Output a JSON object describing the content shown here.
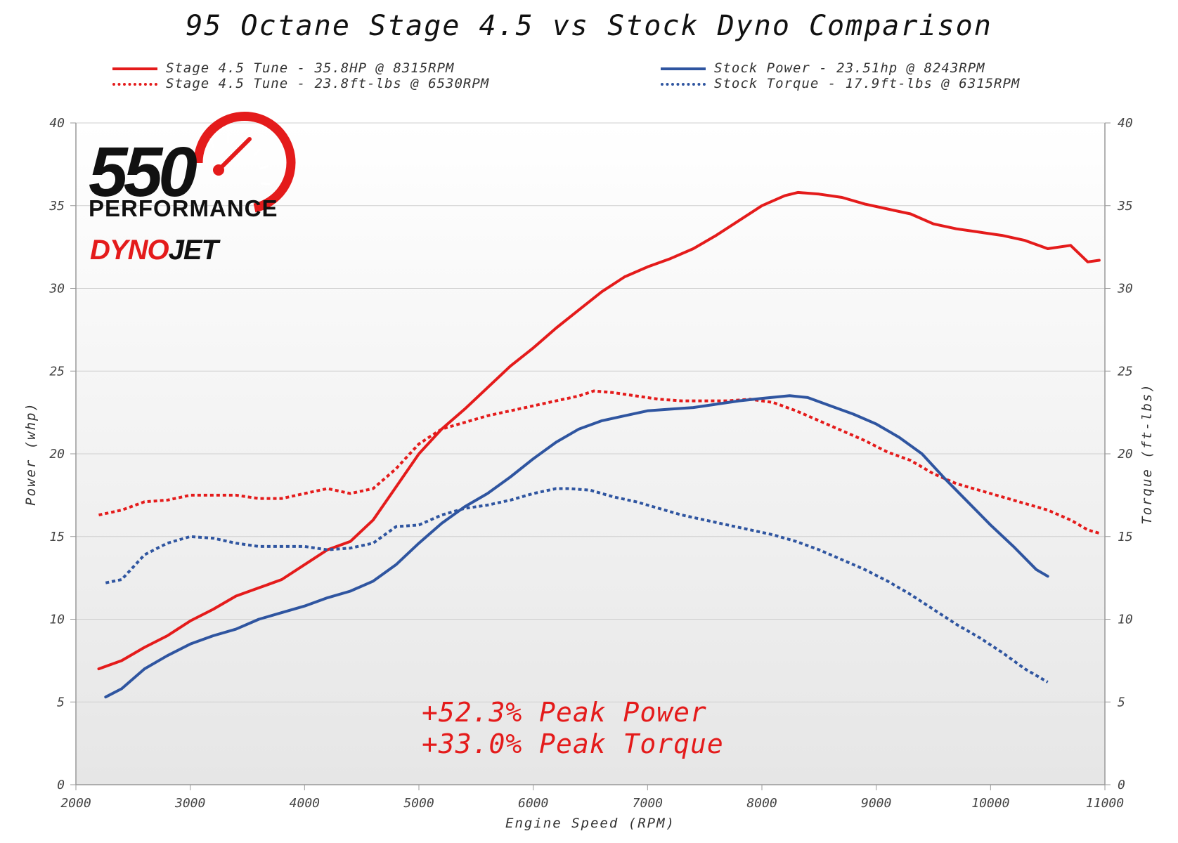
{
  "title": "95 Octane Stage 4.5 vs Stock Dyno Comparison",
  "legend": {
    "stage_power": "Stage 4.5 Tune - 35.8HP @ 8315RPM",
    "stage_torque": "Stage 4.5 Tune - 23.8ft-lbs @ 6530RPM",
    "stock_power": "Stock Power - 23.51hp @ 8243RPM",
    "stock_torque": "Stock Torque - 17.9ft-lbs @ 6315RPM"
  },
  "logo": {
    "number": "550",
    "word": "PERFORMANCE",
    "brand_red": "DYNO",
    "brand_black": "JET"
  },
  "annotations": {
    "line1": "+52.3% Peak Power",
    "line2": "+33.0% Peak Torque"
  },
  "colors": {
    "stage": "#e41b1b",
    "stock": "#2f55a0"
  },
  "chart_data": {
    "type": "line",
    "title": "95 Octane Stage 4.5 vs Stock Dyno Comparison",
    "xlabel": "Engine Speed (RPM)",
    "ylabel_left": "Power (whp)",
    "ylabel_right": "Torque (ft-lbs)",
    "xlim": [
      2000,
      11000
    ],
    "ylim": [
      0,
      40
    ],
    "x_ticks": [
      2000,
      3000,
      4000,
      5000,
      6000,
      7000,
      8000,
      9000,
      10000,
      11000
    ],
    "y_ticks": [
      0,
      5,
      10,
      15,
      20,
      25,
      30,
      35,
      40
    ],
    "legend_position": "top",
    "grid": true,
    "series": [
      {
        "name": "Stage 4.5 Tune - 35.8HP @ 8315RPM",
        "axis": "left",
        "style": "solid",
        "color": "#e41b1b",
        "points": [
          [
            2200,
            7.0
          ],
          [
            2400,
            7.5
          ],
          [
            2600,
            8.3
          ],
          [
            2800,
            9.0
          ],
          [
            3000,
            9.9
          ],
          [
            3200,
            10.6
          ],
          [
            3400,
            11.4
          ],
          [
            3600,
            11.9
          ],
          [
            3800,
            12.4
          ],
          [
            4000,
            13.3
          ],
          [
            4200,
            14.2
          ],
          [
            4400,
            14.7
          ],
          [
            4600,
            16.0
          ],
          [
            4800,
            18.0
          ],
          [
            5000,
            20.0
          ],
          [
            5200,
            21.5
          ],
          [
            5400,
            22.7
          ],
          [
            5600,
            24.0
          ],
          [
            5800,
            25.3
          ],
          [
            6000,
            26.4
          ],
          [
            6200,
            27.6
          ],
          [
            6400,
            28.7
          ],
          [
            6600,
            29.8
          ],
          [
            6800,
            30.7
          ],
          [
            7000,
            31.3
          ],
          [
            7200,
            31.8
          ],
          [
            7400,
            32.4
          ],
          [
            7600,
            33.2
          ],
          [
            7800,
            34.1
          ],
          [
            8000,
            35.0
          ],
          [
            8200,
            35.6
          ],
          [
            8315,
            35.8
          ],
          [
            8500,
            35.7
          ],
          [
            8700,
            35.5
          ],
          [
            8900,
            35.1
          ],
          [
            9100,
            34.8
          ],
          [
            9300,
            34.5
          ],
          [
            9500,
            33.9
          ],
          [
            9700,
            33.6
          ],
          [
            9900,
            33.4
          ],
          [
            10100,
            33.2
          ],
          [
            10300,
            32.9
          ],
          [
            10500,
            32.4
          ],
          [
            10700,
            32.6
          ],
          [
            10850,
            31.6
          ],
          [
            10950,
            31.7
          ]
        ]
      },
      {
        "name": "Stage 4.5 Tune - 23.8ft-lbs @ 6530RPM",
        "axis": "right",
        "style": "dotted",
        "color": "#e41b1b",
        "points": [
          [
            2200,
            16.3
          ],
          [
            2400,
            16.6
          ],
          [
            2600,
            17.1
          ],
          [
            2800,
            17.2
          ],
          [
            3000,
            17.5
          ],
          [
            3200,
            17.5
          ],
          [
            3400,
            17.5
          ],
          [
            3600,
            17.3
          ],
          [
            3800,
            17.3
          ],
          [
            4000,
            17.6
          ],
          [
            4200,
            17.9
          ],
          [
            4400,
            17.6
          ],
          [
            4600,
            17.9
          ],
          [
            4800,
            19.1
          ],
          [
            5000,
            20.6
          ],
          [
            5200,
            21.5
          ],
          [
            5400,
            21.9
          ],
          [
            5600,
            22.3
          ],
          [
            5800,
            22.6
          ],
          [
            6000,
            22.9
          ],
          [
            6200,
            23.2
          ],
          [
            6400,
            23.5
          ],
          [
            6530,
            23.8
          ],
          [
            6700,
            23.7
          ],
          [
            6900,
            23.5
          ],
          [
            7100,
            23.3
          ],
          [
            7300,
            23.2
          ],
          [
            7500,
            23.2
          ],
          [
            7700,
            23.2
          ],
          [
            7900,
            23.3
          ],
          [
            8100,
            23.1
          ],
          [
            8300,
            22.6
          ],
          [
            8500,
            22.0
          ],
          [
            8700,
            21.4
          ],
          [
            8900,
            20.8
          ],
          [
            9100,
            20.1
          ],
          [
            9300,
            19.6
          ],
          [
            9500,
            18.8
          ],
          [
            9700,
            18.2
          ],
          [
            9900,
            17.8
          ],
          [
            10100,
            17.4
          ],
          [
            10300,
            17.0
          ],
          [
            10500,
            16.6
          ],
          [
            10700,
            16.0
          ],
          [
            10850,
            15.4
          ],
          [
            10950,
            15.2
          ]
        ]
      },
      {
        "name": "Stock Power - 23.51hp @ 8243RPM",
        "axis": "left",
        "style": "solid",
        "color": "#2f55a0",
        "points": [
          [
            2260,
            5.3
          ],
          [
            2400,
            5.8
          ],
          [
            2600,
            7.0
          ],
          [
            2800,
            7.8
          ],
          [
            3000,
            8.5
          ],
          [
            3200,
            9.0
          ],
          [
            3400,
            9.4
          ],
          [
            3600,
            10.0
          ],
          [
            3800,
            10.4
          ],
          [
            4000,
            10.8
          ],
          [
            4200,
            11.3
          ],
          [
            4400,
            11.7
          ],
          [
            4600,
            12.3
          ],
          [
            4800,
            13.3
          ],
          [
            5000,
            14.6
          ],
          [
            5200,
            15.8
          ],
          [
            5400,
            16.8
          ],
          [
            5600,
            17.6
          ],
          [
            5800,
            18.6
          ],
          [
            6000,
            19.7
          ],
          [
            6200,
            20.7
          ],
          [
            6400,
            21.5
          ],
          [
            6600,
            22.0
          ],
          [
            6800,
            22.3
          ],
          [
            7000,
            22.6
          ],
          [
            7200,
            22.7
          ],
          [
            7400,
            22.8
          ],
          [
            7600,
            23.0
          ],
          [
            7800,
            23.2
          ],
          [
            8000,
            23.35
          ],
          [
            8243,
            23.51
          ],
          [
            8400,
            23.4
          ],
          [
            8600,
            22.9
          ],
          [
            8800,
            22.4
          ],
          [
            9000,
            21.8
          ],
          [
            9200,
            21.0
          ],
          [
            9400,
            20.0
          ],
          [
            9600,
            18.5
          ],
          [
            9800,
            17.1
          ],
          [
            10000,
            15.7
          ],
          [
            10200,
            14.4
          ],
          [
            10400,
            13.0
          ],
          [
            10500,
            12.6
          ]
        ]
      },
      {
        "name": "Stock Torque - 17.9ft-lbs @ 6315RPM",
        "axis": "right",
        "style": "dotted",
        "color": "#2f55a0",
        "points": [
          [
            2260,
            12.2
          ],
          [
            2400,
            12.4
          ],
          [
            2600,
            13.9
          ],
          [
            2800,
            14.6
          ],
          [
            3000,
            15.0
          ],
          [
            3200,
            14.9
          ],
          [
            3400,
            14.6
          ],
          [
            3600,
            14.4
          ],
          [
            3800,
            14.4
          ],
          [
            4000,
            14.4
          ],
          [
            4200,
            14.2
          ],
          [
            4400,
            14.3
          ],
          [
            4600,
            14.6
          ],
          [
            4800,
            15.6
          ],
          [
            5000,
            15.7
          ],
          [
            5200,
            16.3
          ],
          [
            5400,
            16.7
          ],
          [
            5600,
            16.9
          ],
          [
            5800,
            17.2
          ],
          [
            6000,
            17.6
          ],
          [
            6200,
            17.9
          ],
          [
            6315,
            17.9
          ],
          [
            6500,
            17.8
          ],
          [
            6700,
            17.4
          ],
          [
            6900,
            17.1
          ],
          [
            7100,
            16.7
          ],
          [
            7300,
            16.3
          ],
          [
            7500,
            16.0
          ],
          [
            7700,
            15.7
          ],
          [
            7900,
            15.4
          ],
          [
            8100,
            15.1
          ],
          [
            8300,
            14.7
          ],
          [
            8500,
            14.2
          ],
          [
            8700,
            13.6
          ],
          [
            8900,
            13.0
          ],
          [
            9100,
            12.3
          ],
          [
            9300,
            11.5
          ],
          [
            9500,
            10.6
          ],
          [
            9700,
            9.7
          ],
          [
            9900,
            8.9
          ],
          [
            10100,
            8.0
          ],
          [
            10300,
            7.0
          ],
          [
            10500,
            6.2
          ]
        ]
      }
    ]
  }
}
